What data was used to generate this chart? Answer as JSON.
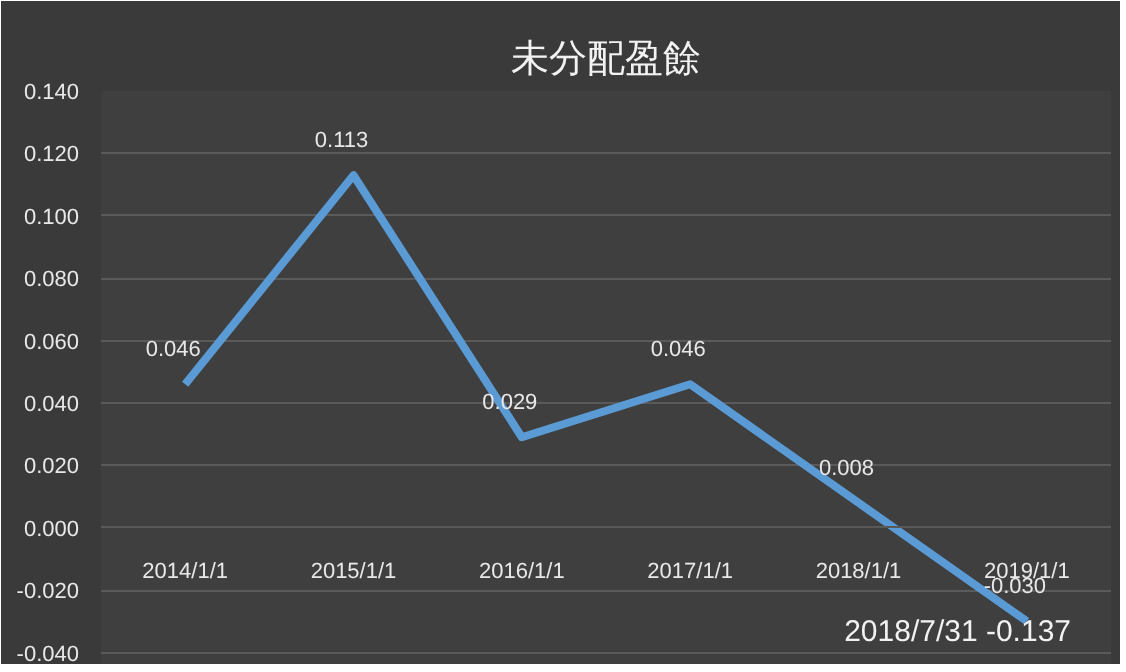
{
  "chart_data": {
    "type": "line",
    "title": "未分配盈餘",
    "categories": [
      "2014/1/1",
      "2015/1/1",
      "2016/1/1",
      "2017/1/1",
      "2018/1/1",
      "2019/1/1"
    ],
    "series": [
      {
        "color": "#5b9bd5",
        "values": [
          0.046,
          0.113,
          0.029,
          0.046,
          0.008,
          -0.03
        ]
      }
    ],
    "value_labels": [
      "0.046",
      "0.113",
      "0.029",
      "0.046",
      "0.008",
      "-0.030"
    ],
    "ylim": [
      -0.044,
      0.14
    ],
    "yticks": [
      {
        "value": -0.04,
        "label": "-0.040"
      },
      {
        "value": -0.02,
        "label": "-0.020"
      },
      {
        "value": 0,
        "label": "0.000"
      },
      {
        "value": 0.02,
        "label": "0.020"
      },
      {
        "value": 0.04,
        "label": "0.040"
      },
      {
        "value": 0.06,
        "label": "0.060"
      },
      {
        "value": 0.08,
        "label": "0.080"
      },
      {
        "value": 0.1,
        "label": "0.100"
      },
      {
        "value": 0.12,
        "label": "0.120"
      },
      {
        "value": 0.14,
        "label": "0.140"
      }
    ],
    "grid": "y",
    "marker": "none",
    "annotations": [
      "2018/7/31 -0.137"
    ]
  }
}
